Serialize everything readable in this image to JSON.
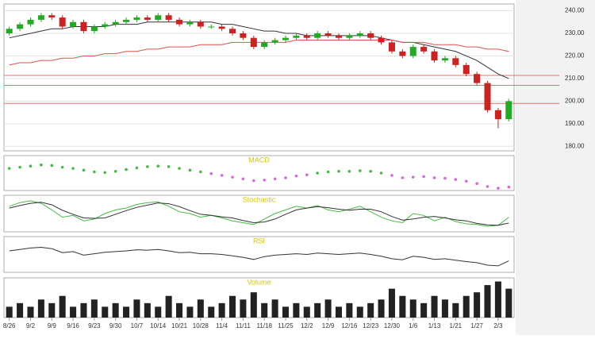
{
  "chart_data": [
    {
      "type": "candlestick",
      "x_count": 48,
      "open": [
        230,
        232,
        234,
        236,
        238,
        237,
        233,
        235,
        231,
        233,
        234,
        235,
        236,
        237,
        236,
        238,
        236,
        234,
        235,
        233,
        233,
        232,
        230,
        228,
        224,
        226,
        227,
        228,
        229,
        228,
        230,
        229,
        228,
        229,
        230,
        228,
        226,
        222,
        220,
        224,
        222,
        218,
        219,
        216,
        212,
        208,
        196,
        192
      ],
      "high": [
        233,
        235,
        237,
        239,
        239,
        238,
        236,
        236,
        234,
        235,
        236,
        237,
        238,
        238,
        239,
        239,
        237,
        236,
        236,
        234,
        234,
        233,
        231,
        229,
        227,
        228,
        229,
        230,
        230,
        231,
        231,
        230,
        230,
        231,
        231,
        229,
        227,
        223,
        225,
        225,
        223,
        220,
        220,
        217,
        213,
        209,
        197,
        201
      ],
      "low": [
        229,
        231,
        233,
        235,
        236,
        232,
        232,
        230,
        230,
        232,
        233,
        234,
        235,
        235,
        235,
        235,
        233,
        233,
        232,
        232,
        231,
        229,
        227,
        223,
        223,
        225,
        226,
        227,
        227,
        227,
        228,
        227,
        227,
        228,
        227,
        225,
        221,
        219,
        219,
        221,
        217,
        217,
        215,
        211,
        207,
        195,
        188,
        191
      ],
      "close": [
        232,
        234,
        236,
        238,
        237,
        233,
        235,
        231,
        233,
        234,
        235,
        236,
        237,
        236,
        238,
        236,
        234,
        235,
        233,
        233,
        232,
        230,
        228,
        224,
        226,
        227,
        228,
        229,
        228,
        230,
        229,
        228,
        229,
        230,
        228,
        226,
        222,
        220,
        224,
        222,
        218,
        219,
        216,
        212,
        208,
        196,
        192,
        200
      ],
      "up_color": "#22aa22",
      "down_color": "#cc2222",
      "series": [
        {
          "color": "#333333",
          "values": [
            228,
            229,
            230,
            231,
            232,
            232,
            233,
            233,
            233,
            233,
            234,
            234,
            234,
            235,
            235,
            235,
            235,
            235,
            235,
            235,
            234,
            234,
            233,
            232,
            231,
            231,
            230,
            230,
            229,
            229,
            229,
            229,
            229,
            229,
            229,
            228,
            227,
            226,
            226,
            225,
            224,
            223,
            222,
            220,
            218,
            215,
            212,
            210
          ]
        },
        {
          "color": "#e05050",
          "values": [
            216,
            217,
            217,
            218,
            218,
            219,
            219,
            220,
            220,
            221,
            221,
            222,
            222,
            223,
            223,
            224,
            224,
            224,
            225,
            225,
            225,
            226,
            226,
            226,
            226,
            226,
            226,
            227,
            227,
            227,
            227,
            227,
            227,
            227,
            227,
            227,
            227,
            226,
            226,
            226,
            225,
            225,
            225,
            224,
            224,
            223,
            223,
            222
          ]
        }
      ],
      "levels": [
        211.4,
        207,
        199
      ],
      "level_color": "#e07070",
      "ylim": [
        178,
        243
      ],
      "yticks": [
        {
          "value": 240,
          "label": "240.00"
        },
        {
          "value": 230,
          "label": "230.00"
        },
        {
          "value": 220,
          "label": "220.00"
        },
        {
          "value": 210,
          "label": "210.00"
        },
        {
          "value": 200,
          "label": "200.00"
        },
        {
          "value": 190,
          "label": "190.00"
        },
        {
          "value": 180,
          "label": "180.00"
        }
      ],
      "grid": true
    },
    {
      "type": "dots",
      "title": "MACD",
      "up_color": "#44bb44",
      "down_color": "#dd66dd",
      "values": [
        0.8,
        1.0,
        1.2,
        1.4,
        1.3,
        1.0,
        0.8,
        0.5,
        0.2,
        0.1,
        0.3,
        0.6,
        0.9,
        1.1,
        1.2,
        1.1,
        0.8,
        0.5,
        0.2,
        -0.1,
        -0.4,
        -0.7,
        -1.0,
        -1.3,
        -1.2,
        -1.0,
        -0.8,
        -0.5,
        -0.3,
        0.0,
        0.2,
        0.3,
        0.3,
        0.4,
        0.3,
        0.0,
        -0.4,
        -0.8,
        -0.7,
        -0.6,
        -0.8,
        -0.9,
        -1.1,
        -1.4,
        -1.8,
        -2.3,
        -2.6,
        -2.4
      ],
      "ylim": [
        -3,
        3
      ]
    },
    {
      "type": "line",
      "title": "Stochastic",
      "ylim": [
        0,
        100
      ],
      "series": [
        {
          "color": "#44bb44",
          "values": [
            70,
            80,
            85,
            78,
            60,
            40,
            45,
            30,
            35,
            50,
            60,
            65,
            75,
            80,
            82,
            70,
            55,
            50,
            40,
            45,
            38,
            30,
            25,
            20,
            35,
            50,
            60,
            70,
            65,
            72,
            60,
            55,
            62,
            70,
            55,
            40,
            30,
            25,
            50,
            45,
            30,
            40,
            28,
            22,
            20,
            15,
            18,
            40
          ]
        },
        {
          "color": "#333333",
          "values": [
            65,
            72,
            78,
            81,
            74,
            59,
            48,
            38,
            37,
            38,
            48,
            58,
            67,
            73,
            79,
            77,
            69,
            58,
            48,
            45,
            41,
            38,
            31,
            25,
            27,
            35,
            48,
            60,
            65,
            69,
            66,
            62,
            59,
            62,
            62,
            55,
            42,
            32,
            35,
            40,
            42,
            38,
            33,
            30,
            23,
            19,
            18,
            24
          ]
        }
      ]
    },
    {
      "type": "line",
      "title": "RSI",
      "ylim": [
        0,
        100
      ],
      "series": [
        {
          "color": "#333333",
          "values": [
            60,
            64,
            68,
            70,
            66,
            55,
            58,
            48,
            52,
            56,
            58,
            60,
            63,
            62,
            64,
            60,
            55,
            56,
            52,
            52,
            50,
            46,
            42,
            36,
            44,
            48,
            50,
            52,
            50,
            54,
            52,
            50,
            52,
            54,
            50,
            45,
            38,
            35,
            45,
            42,
            36,
            38,
            34,
            30,
            27,
            20,
            18,
            32
          ]
        }
      ]
    },
    {
      "type": "bar",
      "title": "Volume",
      "color": "#222222",
      "ylim": [
        0,
        11
      ],
      "values": [
        3,
        4,
        3,
        5,
        4,
        6,
        3,
        4,
        5,
        3,
        4,
        3,
        5,
        4,
        3,
        6,
        4,
        3,
        5,
        3,
        4,
        6,
        5,
        7,
        4,
        5,
        3,
        4,
        3,
        4,
        5,
        3,
        4,
        3,
        4,
        5,
        8,
        6,
        5,
        4,
        6,
        5,
        4,
        6,
        7,
        9,
        10,
        8
      ],
      "categories": [
        "8/26",
        null,
        "9/2",
        null,
        "9/9",
        null,
        "9/16",
        null,
        "9/23",
        null,
        "9/30",
        null,
        "10/7",
        null,
        "10/14",
        null,
        "10/21",
        null,
        "10/28",
        null,
        "11/4",
        null,
        "11/11",
        null,
        "11/18",
        null,
        "11/25",
        null,
        "12/2",
        null,
        "12/9",
        null,
        "12/16",
        null,
        "12/23",
        null,
        "12/30",
        null,
        "1/6",
        null,
        "1/13",
        null,
        "1/21",
        null,
        "1/27",
        null,
        "2/3",
        null
      ]
    }
  ]
}
